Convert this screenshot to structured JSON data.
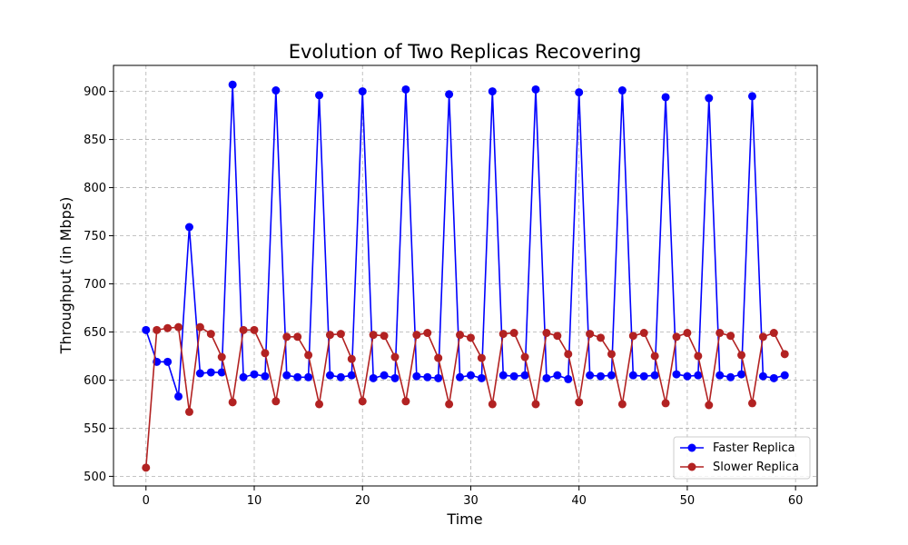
{
  "chart_data": {
    "type": "line",
    "title": "Evolution of Two Replicas Recovering",
    "xlabel": "Time",
    "ylabel": "Throughput (in Mbps)",
    "xlim": [
      -3,
      62
    ],
    "ylim": [
      490,
      927
    ],
    "x_ticks": [
      0,
      10,
      20,
      30,
      40,
      50,
      60
    ],
    "y_ticks": [
      500,
      550,
      600,
      650,
      700,
      750,
      800,
      850,
      900
    ],
    "grid": true,
    "legend_position": "lower-right",
    "x": [
      0,
      1,
      2,
      3,
      4,
      5,
      6,
      7,
      8,
      9,
      10,
      11,
      12,
      13,
      14,
      15,
      16,
      17,
      18,
      19,
      20,
      21,
      22,
      23,
      24,
      25,
      26,
      27,
      28,
      29,
      30,
      31,
      32,
      33,
      34,
      35,
      36,
      37,
      38,
      39,
      40,
      41,
      42,
      43,
      44,
      45,
      46,
      47,
      48,
      49,
      50,
      51,
      52,
      53,
      54,
      55,
      56,
      57,
      58,
      59
    ],
    "series": [
      {
        "name": "Faster Replica",
        "color": "#0000ff",
        "values": [
          652,
          619,
          619,
          583,
          759,
          607,
          608,
          608,
          907,
          603,
          606,
          604,
          901,
          605,
          603,
          603,
          896,
          605,
          603,
          605,
          900,
          602,
          605,
          602,
          902,
          604,
          603,
          602,
          897,
          603,
          605,
          602,
          900,
          605,
          604,
          605,
          902,
          602,
          605,
          601,
          899,
          605,
          604,
          605,
          901,
          605,
          604,
          605,
          894,
          606,
          604,
          605,
          893,
          605,
          603,
          606,
          895,
          604,
          602,
          605
        ]
      },
      {
        "name": "Slower Replica",
        "color": "#b22222",
        "values": [
          509,
          652,
          654,
          655,
          567,
          655,
          648,
          624,
          577,
          652,
          652,
          628,
          578,
          645,
          645,
          626,
          575,
          647,
          648,
          622,
          578,
          647,
          646,
          624,
          578,
          647,
          649,
          623,
          575,
          647,
          644,
          623,
          575,
          648,
          649,
          624,
          575,
          649,
          646,
          627,
          577,
          648,
          644,
          627,
          575,
          646,
          649,
          625,
          576,
          645,
          649,
          625,
          574,
          649,
          646,
          626,
          576,
          645,
          649,
          627
        ]
      }
    ]
  }
}
